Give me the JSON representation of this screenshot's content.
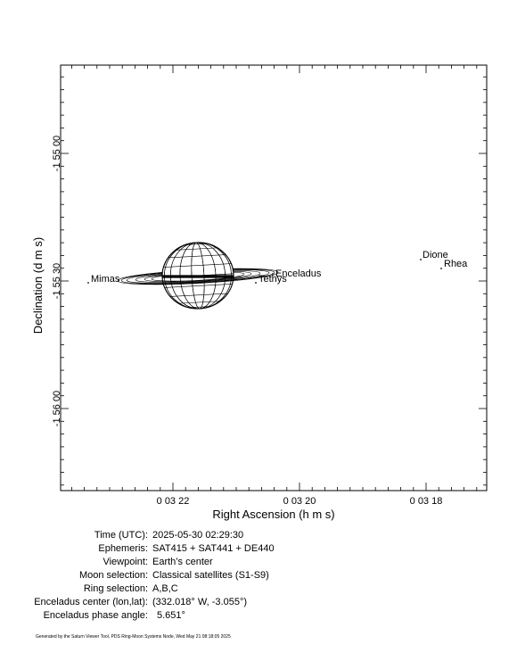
{
  "plot": {
    "xlabel": "Right Ascension (h m s)",
    "ylabel": "Declination (d m s)",
    "x_ticks": [
      "0 03 22",
      "0 03 20",
      "0 03 18"
    ],
    "y_ticks": [
      "-1 55 00",
      "-1 55 30",
      "-1 56 00"
    ],
    "moons": [
      {
        "name": "Mimas"
      },
      {
        "name": "Enceladus"
      },
      {
        "name": "Tethys"
      },
      {
        "name": "Dione"
      },
      {
        "name": "Rhea"
      }
    ]
  },
  "info": [
    {
      "label": "Time (UTC):",
      "value": "2025-05-30 02:29:30"
    },
    {
      "label": "Ephemeris:",
      "value": "SAT415 + SAT441 + DE440"
    },
    {
      "label": "Viewpoint:",
      "value": "Earth’s center"
    },
    {
      "label": "Moon selection:",
      "value": "Classical satellites (S1-S9)"
    },
    {
      "label": "Ring selection:",
      "value": "A,B,C"
    },
    {
      "label": "Enceladus center (lon,lat):",
      "value": "(332.018° W, -3.055°)"
    },
    {
      "label": "Enceladus phase angle:",
      "value": "5.651°"
    }
  ],
  "footer": "Generated by the Saturn Viewer Tool, PDS Ring-Moon Systems Node, Wed May 21 08:18:05 2025"
}
